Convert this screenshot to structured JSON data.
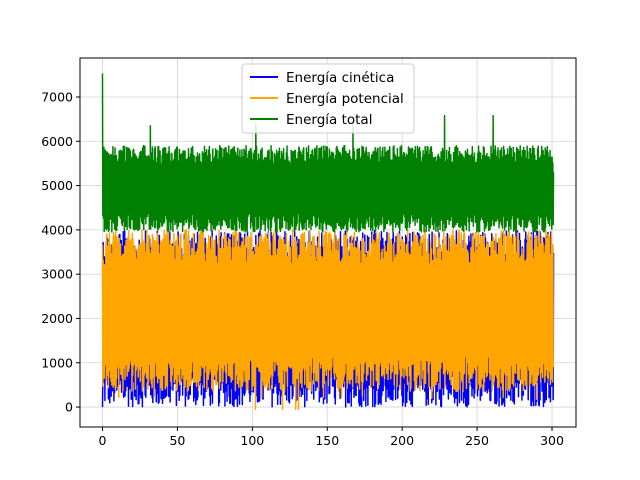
{
  "chart_data": {
    "type": "line",
    "title": "",
    "xlabel": "",
    "ylabel": "",
    "xlim": [
      -15,
      316
    ],
    "ylim": [
      -450,
      7880
    ],
    "x_ticks": [
      0,
      50,
      100,
      150,
      200,
      250,
      300
    ],
    "y_ticks": [
      0,
      1000,
      2000,
      3000,
      4000,
      5000,
      6000,
      7000
    ],
    "grid": true,
    "legend_position": "top-center",
    "x_range": [
      0,
      301
    ],
    "series": [
      {
        "name": "Energía cinética",
        "color": "#0000ff",
        "band": [
          0,
          3980
        ],
        "start": 0,
        "end": 3480
      },
      {
        "name": "Energía potencial",
        "color": "#ffa500",
        "band": [
          350,
          4000
        ],
        "spikes_low": [
          -50,
          180,
          200,
          220,
          250
        ],
        "start": 3650,
        "end": 900
      },
      {
        "name": "Energía total",
        "color": "#008000",
        "band": [
          3950,
          5900
        ],
        "spikes_high": [
          7530,
          6640,
          6580,
          6400,
          6350,
          6300,
          6250,
          6200
        ],
        "start": 7530,
        "end": 5300
      }
    ]
  }
}
